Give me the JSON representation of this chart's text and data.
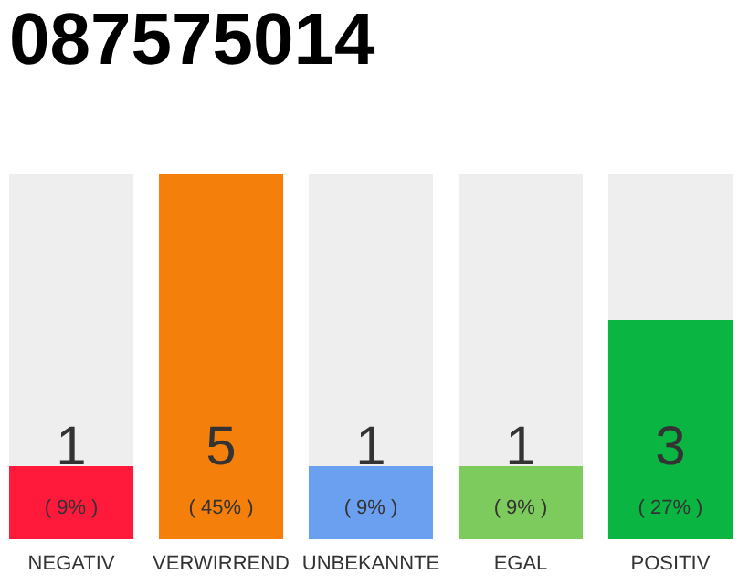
{
  "chart_data": {
    "type": "bar",
    "title": "087575014",
    "categories": [
      "NEGATIV",
      "VERWIRREND",
      "UNBEKANNTE",
      "EGAL",
      "POSITIV"
    ],
    "values": [
      1,
      5,
      1,
      1,
      3
    ],
    "colors": [
      "#ff1a3c",
      "#f47f0b",
      "#6b9ff0",
      "#7dcb5c",
      "#0bb542"
    ],
    "ylim": [
      0,
      5
    ],
    "data_labels": true,
    "annotations": [
      "( 9% )",
      "( 45% )",
      "( 9% )",
      "( 9% )",
      "( 27% )"
    ]
  }
}
